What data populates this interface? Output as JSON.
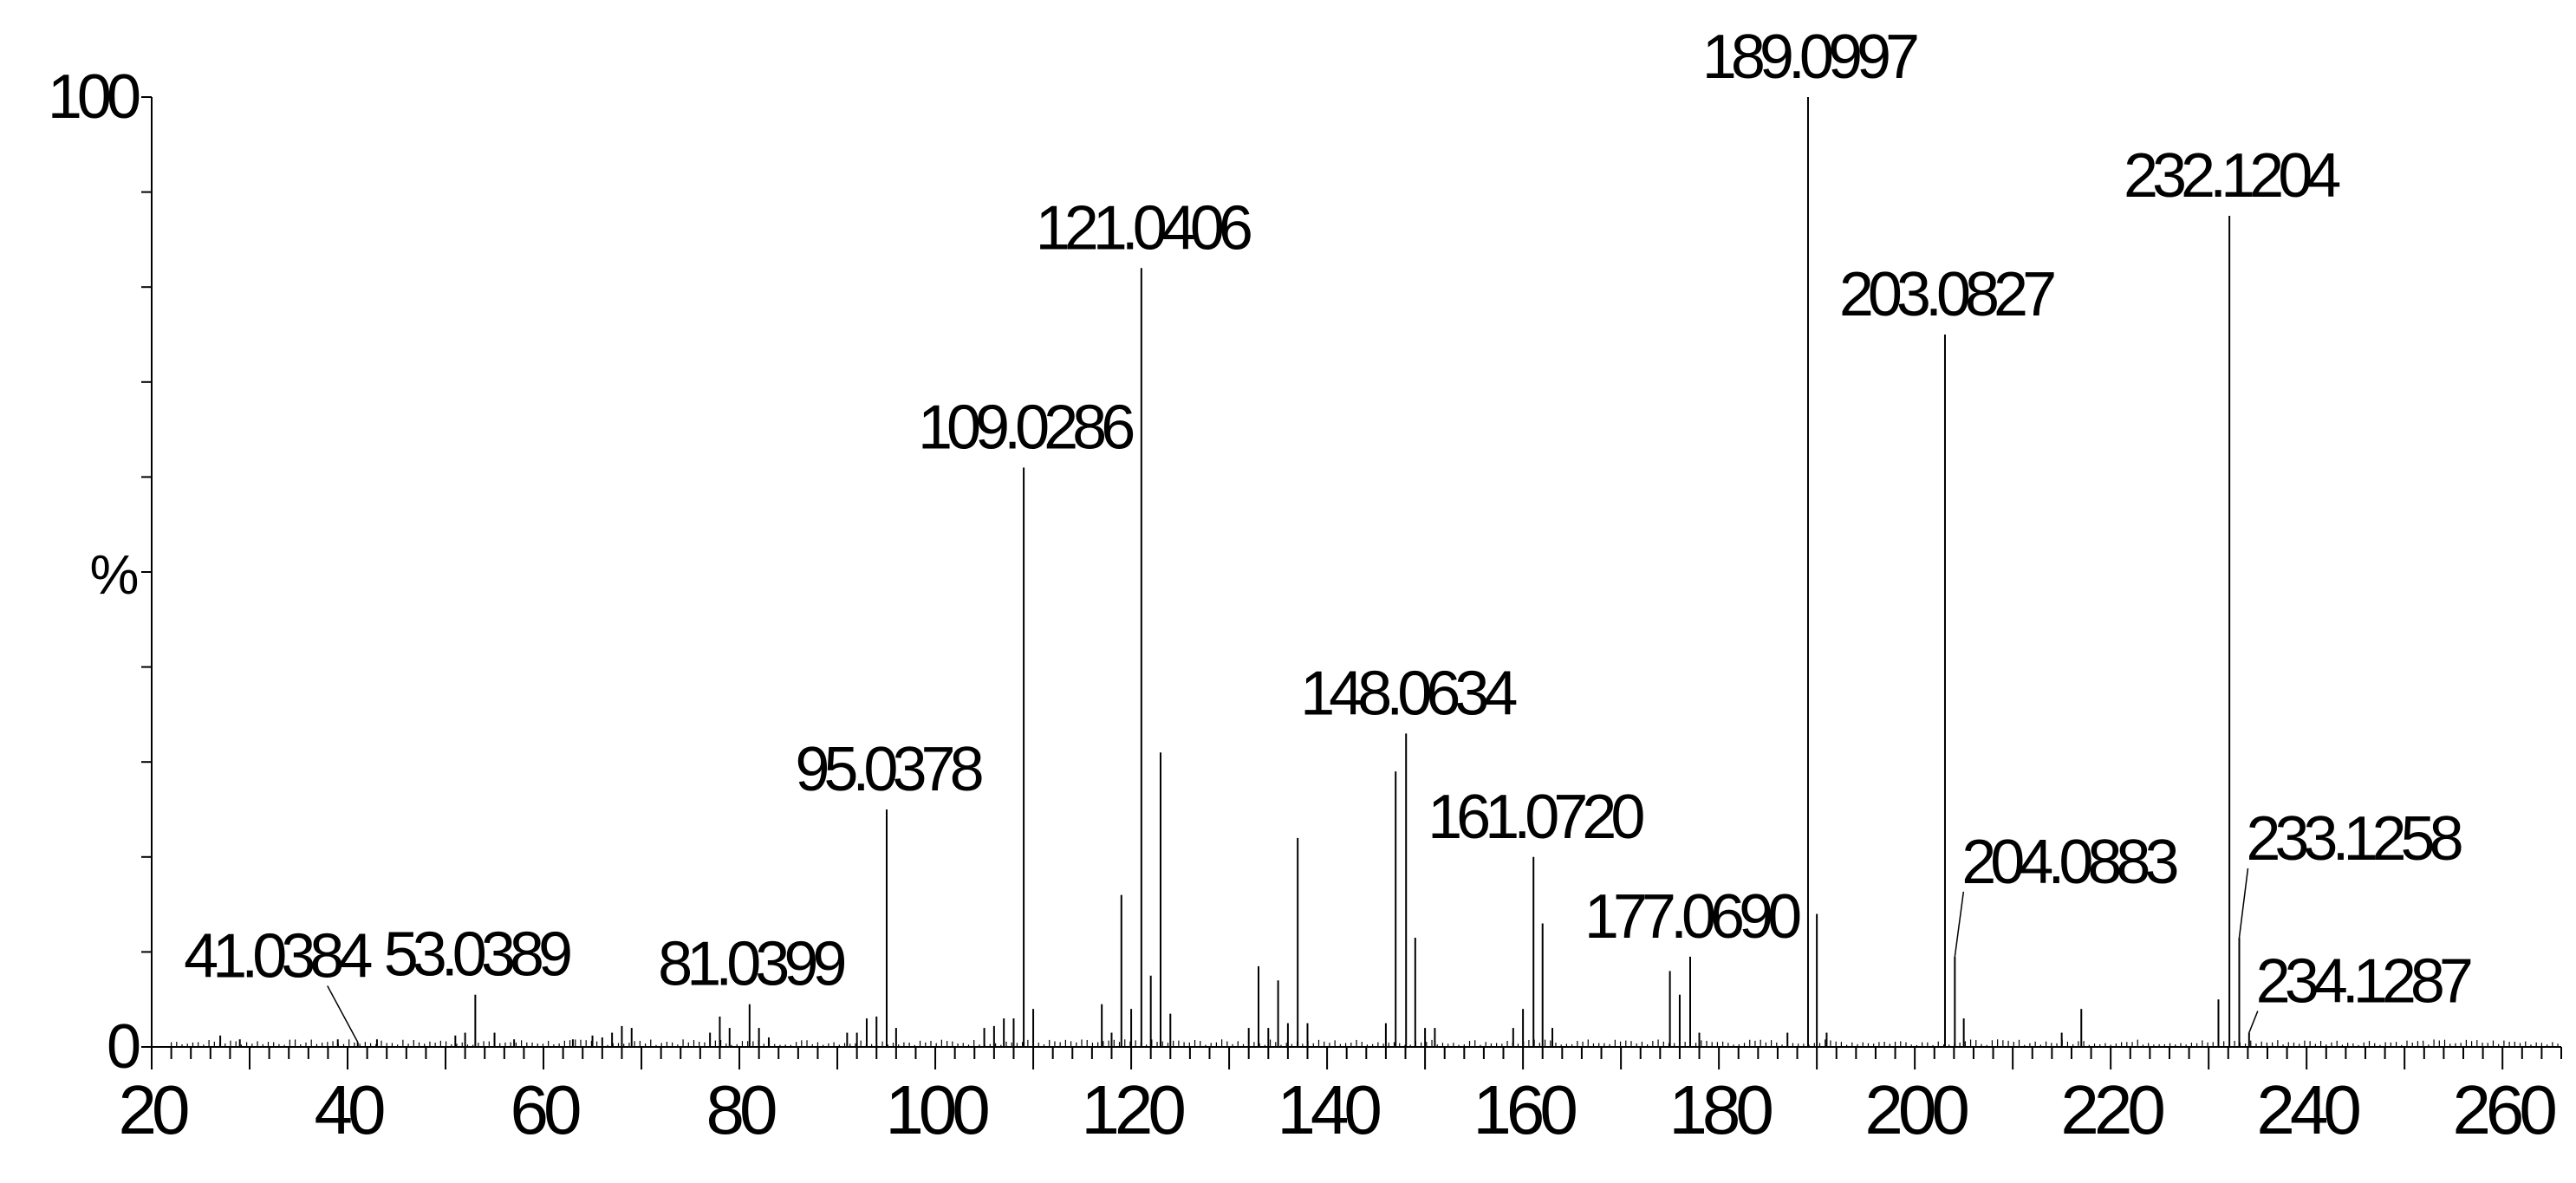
{
  "chart_data": {
    "type": "mass-spectrum",
    "xlabel": "",
    "ylabel": "%",
    "xlim": [
      20,
      266
    ],
    "ylim": [
      0,
      100
    ],
    "x_ticks": [
      20,
      40,
      60,
      80,
      100,
      120,
      140,
      160,
      180,
      200,
      220,
      240,
      260
    ],
    "y_ticks": [
      0,
      100
    ],
    "grid": false,
    "legend": "none",
    "labeled_peaks": [
      {
        "mz": 41.0384,
        "intensity": 0.5,
        "label": "41.0384"
      },
      {
        "mz": 53.0389,
        "intensity": 5.5,
        "label": "53.0389"
      },
      {
        "mz": 81.0399,
        "intensity": 4.5,
        "label": "81.0399"
      },
      {
        "mz": 95.0378,
        "intensity": 25,
        "label": "95.0378"
      },
      {
        "mz": 109.0286,
        "intensity": 61,
        "label": "109.0286"
      },
      {
        "mz": 121.0406,
        "intensity": 82,
        "label": "121.0406"
      },
      {
        "mz": 148.0634,
        "intensity": 33,
        "label": "148.0634"
      },
      {
        "mz": 161.072,
        "intensity": 20,
        "label": "161.0720"
      },
      {
        "mz": 177.069,
        "intensity": 9.5,
        "label": "177.0690"
      },
      {
        "mz": 189.0997,
        "intensity": 100,
        "label": "189.0997"
      },
      {
        "mz": 203.0827,
        "intensity": 75,
        "label": "203.0827"
      },
      {
        "mz": 204.0883,
        "intensity": 9.5,
        "label": "204.0883"
      },
      {
        "mz": 232.1204,
        "intensity": 87.5,
        "label": "232.1204"
      },
      {
        "mz": 233.1258,
        "intensity": 11.5,
        "label": "233.1258"
      },
      {
        "mz": 234.1287,
        "intensity": 1.5,
        "label": "234.1287"
      }
    ],
    "unlabeled_peaks": [
      {
        "mz": 27,
        "intensity": 1.2
      },
      {
        "mz": 29,
        "intensity": 0.8
      },
      {
        "mz": 39,
        "intensity": 0.8
      },
      {
        "mz": 43,
        "intensity": 0.8
      },
      {
        "mz": 51,
        "intensity": 1.2
      },
      {
        "mz": 52,
        "intensity": 1.5
      },
      {
        "mz": 55,
        "intensity": 1.5
      },
      {
        "mz": 57,
        "intensity": 0.8
      },
      {
        "mz": 63,
        "intensity": 0.8
      },
      {
        "mz": 65,
        "intensity": 1.2
      },
      {
        "mz": 66,
        "intensity": 1
      },
      {
        "mz": 67,
        "intensity": 1.5
      },
      {
        "mz": 68,
        "intensity": 2.2
      },
      {
        "mz": 69,
        "intensity": 2
      },
      {
        "mz": 77,
        "intensity": 1.5
      },
      {
        "mz": 78,
        "intensity": 3.2
      },
      {
        "mz": 79,
        "intensity": 2
      },
      {
        "mz": 82,
        "intensity": 2
      },
      {
        "mz": 83,
        "intensity": 1
      },
      {
        "mz": 91,
        "intensity": 1.5
      },
      {
        "mz": 92,
        "intensity": 1.5
      },
      {
        "mz": 93,
        "intensity": 3
      },
      {
        "mz": 94,
        "intensity": 3.2
      },
      {
        "mz": 96,
        "intensity": 2
      },
      {
        "mz": 105,
        "intensity": 2
      },
      {
        "mz": 106,
        "intensity": 2.2
      },
      {
        "mz": 107,
        "intensity": 3
      },
      {
        "mz": 108,
        "intensity": 3
      },
      {
        "mz": 110,
        "intensity": 4
      },
      {
        "mz": 117,
        "intensity": 4.5
      },
      {
        "mz": 118,
        "intensity": 1.5
      },
      {
        "mz": 119,
        "intensity": 16
      },
      {
        "mz": 120,
        "intensity": 4
      },
      {
        "mz": 122,
        "intensity": 7.5
      },
      {
        "mz": 123,
        "intensity": 31
      },
      {
        "mz": 124,
        "intensity": 3.5
      },
      {
        "mz": 132,
        "intensity": 2
      },
      {
        "mz": 133,
        "intensity": 8.5
      },
      {
        "mz": 134,
        "intensity": 2
      },
      {
        "mz": 135,
        "intensity": 7
      },
      {
        "mz": 136,
        "intensity": 2.5
      },
      {
        "mz": 137,
        "intensity": 22
      },
      {
        "mz": 138,
        "intensity": 2.5
      },
      {
        "mz": 146,
        "intensity": 2.5
      },
      {
        "mz": 147,
        "intensity": 29
      },
      {
        "mz": 149,
        "intensity": 11.5
      },
      {
        "mz": 150,
        "intensity": 2
      },
      {
        "mz": 151,
        "intensity": 2
      },
      {
        "mz": 159,
        "intensity": 2
      },
      {
        "mz": 160,
        "intensity": 4
      },
      {
        "mz": 162,
        "intensity": 13
      },
      {
        "mz": 163,
        "intensity": 2
      },
      {
        "mz": 175,
        "intensity": 8
      },
      {
        "mz": 176,
        "intensity": 5.5
      },
      {
        "mz": 178,
        "intensity": 1.5
      },
      {
        "mz": 187,
        "intensity": 1.5
      },
      {
        "mz": 190,
        "intensity": 14
      },
      {
        "mz": 191,
        "intensity": 1.5
      },
      {
        "mz": 205,
        "intensity": 3
      },
      {
        "mz": 215,
        "intensity": 1.5
      },
      {
        "mz": 217,
        "intensity": 4
      },
      {
        "mz": 231,
        "intensity": 5
      }
    ]
  }
}
